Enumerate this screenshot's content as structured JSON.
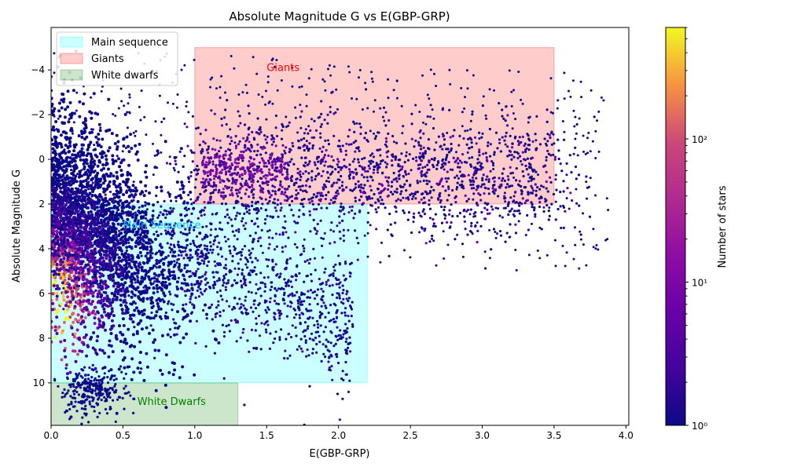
{
  "chart_data": {
    "type": "heatmap",
    "title": "Absolute Magnitude G vs E(GBP-GRP)",
    "xlabel": "E(GBP-GRP)",
    "ylabel": "Absolute Magnitude G",
    "xlim": [
      0.0,
      4.02
    ],
    "ylim": [
      11.9,
      -5.9
    ],
    "y_inverted": true,
    "x_ticks": [
      0.0,
      0.5,
      1.0,
      1.5,
      2.0,
      2.5,
      3.0,
      3.5,
      4.0
    ],
    "x_tick_labels": [
      "0.0",
      "0.5",
      "1.0",
      "1.5",
      "2.0",
      "2.5",
      "3.0",
      "3.5",
      "4.0"
    ],
    "y_ticks": [
      -4,
      -2,
      0,
      2,
      4,
      6,
      8,
      10
    ],
    "y_tick_labels": [
      "−4",
      "−2",
      "0",
      "2",
      "4",
      "6",
      "8",
      "10"
    ],
    "regions": [
      {
        "name": "Main sequence",
        "x": [
          0.0,
          2.2
        ],
        "y": [
          2.0,
          10.0
        ],
        "color": "#00ffff",
        "alpha": 0.2,
        "annotation": "Main Sequence",
        "annotation_at": [
          0.5,
          2.95
        ],
        "annotation_color": "#00bfff"
      },
      {
        "name": "Giants",
        "x": [
          1.0,
          3.5
        ],
        "y": [
          -5.0,
          2.0
        ],
        "color": "#ff0000",
        "alpha": 0.2,
        "annotation": "Giants",
        "annotation_at": [
          1.5,
          -4.1
        ],
        "annotation_color": "#ff0000"
      },
      {
        "name": "White dwarfs",
        "x": [
          0.0,
          1.3
        ],
        "y": [
          10.0,
          12.0
        ],
        "color": "#008000",
        "alpha": 0.2,
        "annotation": "White Dwarfs",
        "annotation_at": [
          0.6,
          10.85
        ],
        "annotation_color": "#008000"
      }
    ],
    "legend": {
      "placement": "top-left",
      "entries": [
        "Main sequence",
        "Giants",
        "White dwarfs"
      ]
    },
    "colorbar": {
      "label": "Number of stars",
      "scale": "log",
      "colormap": "plasma",
      "range": [
        1,
        600
      ],
      "ticks": [
        1,
        10,
        100
      ],
      "tick_labels": [
        "10⁰",
        "10¹",
        "10²"
      ]
    },
    "grid": false
  }
}
